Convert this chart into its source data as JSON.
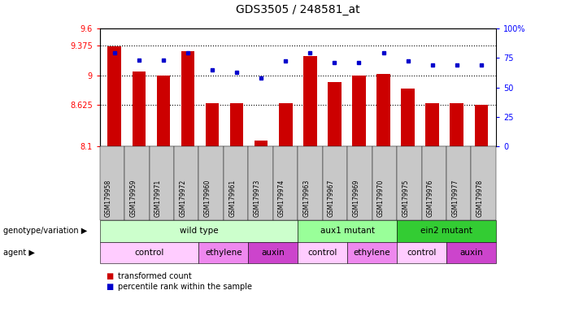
{
  "title": "GDS3505 / 248581_at",
  "samples": [
    "GSM179958",
    "GSM179959",
    "GSM179971",
    "GSM179972",
    "GSM179960",
    "GSM179961",
    "GSM179973",
    "GSM179974",
    "GSM179963",
    "GSM179967",
    "GSM179969",
    "GSM179970",
    "GSM179975",
    "GSM179976",
    "GSM179977",
    "GSM179978"
  ],
  "red_values": [
    9.37,
    9.05,
    9.0,
    9.31,
    8.65,
    8.65,
    8.18,
    8.65,
    9.25,
    8.92,
    9.0,
    9.02,
    8.83,
    8.65,
    8.65,
    8.625
  ],
  "blue_values": [
    79,
    73,
    73,
    79,
    65,
    63,
    58,
    72,
    79,
    71,
    71,
    79,
    72,
    69,
    69,
    69
  ],
  "ylim_left": [
    8.1,
    9.6
  ],
  "ylim_right": [
    0,
    100
  ],
  "yticks_left": [
    8.1,
    8.625,
    9.0,
    9.375,
    9.6
  ],
  "ytick_labels_left": [
    "8.1",
    "8.625",
    "9",
    "9.375",
    "9.6"
  ],
  "yticks_right": [
    0,
    25,
    50,
    75,
    100
  ],
  "ytick_labels_right": [
    "0",
    "25",
    "50",
    "75",
    "100%"
  ],
  "hlines": [
    9.375,
    9.0,
    8.625
  ],
  "genotype_groups": [
    {
      "label": "wild type",
      "start": 0,
      "end": 8,
      "color": "#ccffcc"
    },
    {
      "label": "aux1 mutant",
      "start": 8,
      "end": 12,
      "color": "#99ff99"
    },
    {
      "label": "ein2 mutant",
      "start": 12,
      "end": 16,
      "color": "#33cc33"
    }
  ],
  "agent_groups": [
    {
      "label": "control",
      "start": 0,
      "end": 4,
      "color": "#ffccff"
    },
    {
      "label": "ethylene",
      "start": 4,
      "end": 6,
      "color": "#ee88ee"
    },
    {
      "label": "auxin",
      "start": 6,
      "end": 8,
      "color": "#cc44cc"
    },
    {
      "label": "control",
      "start": 8,
      "end": 10,
      "color": "#ffccff"
    },
    {
      "label": "ethylene",
      "start": 10,
      "end": 12,
      "color": "#ee88ee"
    },
    {
      "label": "control",
      "start": 12,
      "end": 14,
      "color": "#ffccff"
    },
    {
      "label": "auxin",
      "start": 14,
      "end": 16,
      "color": "#cc44cc"
    }
  ],
  "bar_color": "#cc0000",
  "dot_color": "#0000cc",
  "bar_width": 0.55,
  "xtick_bg": "#c8c8c8",
  "genotype_label": "genotype/variation",
  "agent_label": "agent",
  "legend_red": "transformed count",
  "legend_blue": "percentile rank within the sample"
}
